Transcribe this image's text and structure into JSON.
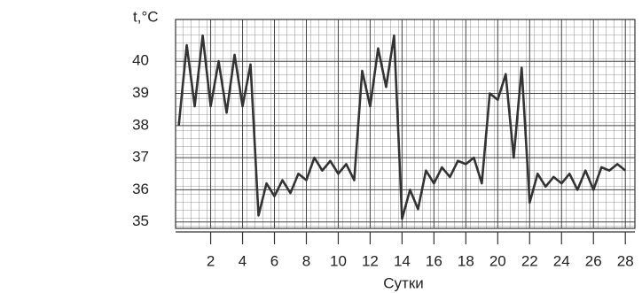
{
  "chart_data": {
    "type": "line",
    "y_label": "t,°C",
    "x_label": "Сутки",
    "x": [
      0,
      0.5,
      1,
      1.5,
      2,
      2.5,
      3,
      3.5,
      4,
      4.5,
      5,
      5.5,
      6,
      6.5,
      7,
      7.5,
      8,
      8.5,
      9,
      9.5,
      10,
      10.5,
      11,
      11.5,
      12,
      12.5,
      13,
      13.5,
      14,
      14.5,
      15,
      15.5,
      16,
      16.5,
      17,
      17.5,
      18,
      18.5,
      19,
      19.5,
      20,
      20.5,
      21,
      21.5,
      22,
      22.5,
      23,
      23.5,
      24,
      24.5,
      25,
      25.5,
      26,
      26.5,
      27,
      27.5,
      28
    ],
    "series": [
      {
        "color": "#333333",
        "values": [
          38.0,
          40.5,
          38.6,
          40.8,
          38.6,
          40.0,
          38.4,
          40.2,
          38.6,
          39.9,
          35.2,
          36.2,
          35.8,
          36.3,
          35.9,
          36.5,
          36.3,
          37.0,
          36.6,
          36.9,
          36.5,
          36.8,
          36.3,
          39.7,
          38.6,
          40.4,
          39.2,
          40.8,
          35.1,
          36.0,
          35.4,
          36.6,
          36.2,
          36.7,
          36.4,
          36.9,
          36.8,
          37.0,
          36.2,
          39.0,
          38.8,
          39.6,
          37.0,
          39.8,
          35.6,
          36.5,
          36.1,
          36.4,
          36.2,
          36.5,
          36.0,
          36.6,
          36.0,
          36.7,
          36.6,
          36.8,
          36.6
        ]
      }
    ],
    "xlim": [
      -0.2,
      28.6
    ],
    "ylim": [
      34.8,
      41.3
    ],
    "xticks": [
      2,
      4,
      6,
      8,
      10,
      12,
      14,
      16,
      18,
      20,
      22,
      24,
      26,
      28
    ],
    "yticks": [
      35,
      36,
      37,
      38,
      39,
      40
    ],
    "grid": true
  }
}
